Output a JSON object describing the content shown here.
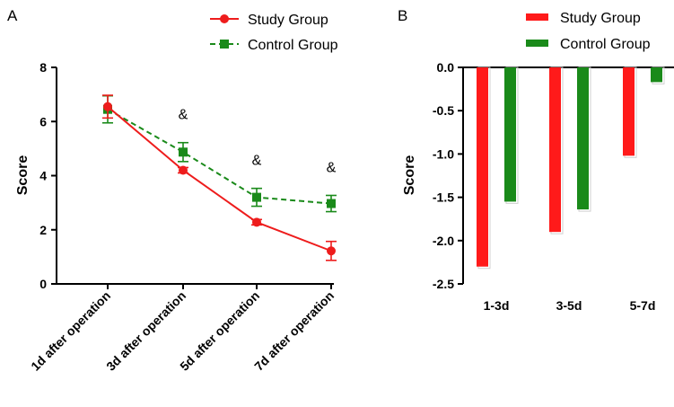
{
  "chart_data": [
    {
      "panel": "A",
      "type": "line",
      "x": [
        "1d after operation",
        "3d after operation",
        "5d after operation",
        "7d after operation"
      ],
      "ylabel": "Score",
      "xlabel": "",
      "ylim": [
        0,
        8
      ],
      "yticks": [
        0,
        2,
        4,
        6,
        8
      ],
      "grid": false,
      "legend_position": "top-right",
      "series": [
        {
          "name": "Study Group",
          "values": [
            6.55,
            4.2,
            2.28,
            1.22
          ],
          "errors": [
            0.42,
            0.1,
            0.1,
            0.35
          ],
          "color": "#ee1c1c",
          "marker": "circle",
          "dash": "solid"
        },
        {
          "name": "Control Group",
          "values": [
            6.45,
            4.87,
            3.2,
            2.97
          ],
          "errors": [
            0.5,
            0.35,
            0.33,
            0.3
          ],
          "color": "#1a8a1a",
          "marker": "square",
          "dash": "dashed"
        }
      ],
      "annotations": [
        {
          "text": "&",
          "x_index": 1
        },
        {
          "text": "&",
          "x_index": 2
        },
        {
          "text": "&",
          "x_index": 3
        }
      ]
    },
    {
      "panel": "B",
      "type": "bar",
      "categories": [
        "1-3d",
        "3-5d",
        "5-7d"
      ],
      "ylabel": "Score",
      "xlabel": "",
      "ylim": [
        -2.5,
        0
      ],
      "yticks": [
        0.0,
        -0.5,
        -1.0,
        -1.5,
        -2.0,
        -2.5
      ],
      "ytick_labels": [
        "0.0",
        "-0.5",
        "-1.0",
        "-1.5",
        "-2.0",
        "-2.5"
      ],
      "grid": false,
      "legend_position": "top-right",
      "series": [
        {
          "name": "Study Group",
          "values": [
            -2.3,
            -1.9,
            -1.02
          ],
          "color": "#ff1a1a"
        },
        {
          "name": "Control Group",
          "values": [
            -1.55,
            -1.64,
            -0.17
          ],
          "color": "#1a8a1a"
        }
      ]
    }
  ]
}
